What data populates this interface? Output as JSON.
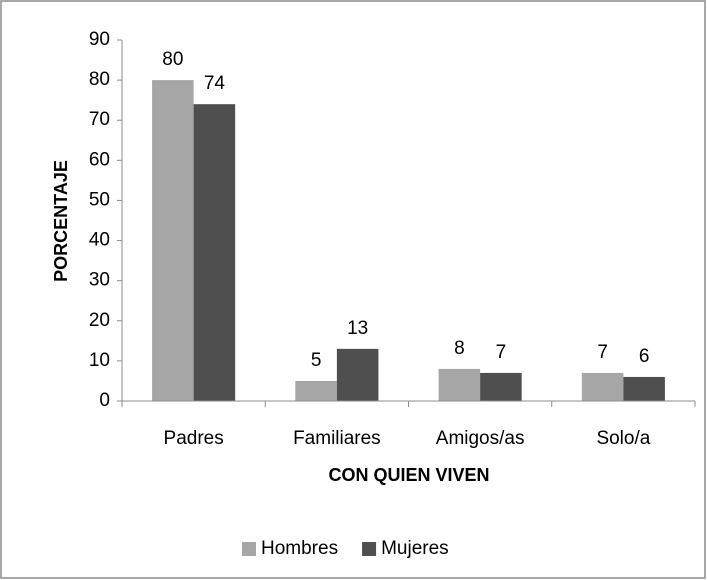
{
  "chart_data": {
    "type": "bar",
    "categories": [
      "Padres",
      "Familiares",
      "Amigos/as",
      "Solo/a"
    ],
    "series": [
      {
        "name": "Hombres",
        "color": "#a6a6a6",
        "values": [
          80,
          5,
          8,
          7
        ]
      },
      {
        "name": "Mujeres",
        "color": "#4f4f4f",
        "values": [
          74,
          13,
          7,
          6
        ]
      }
    ],
    "ylim": [
      0,
      90
    ],
    "yticks": [
      0,
      10,
      20,
      30,
      40,
      50,
      60,
      70,
      80,
      90
    ],
    "xlabel": "CON QUIEN VIVEN",
    "ylabel": "PORCENTAJE",
    "grid": false,
    "legend": "bottom"
  }
}
